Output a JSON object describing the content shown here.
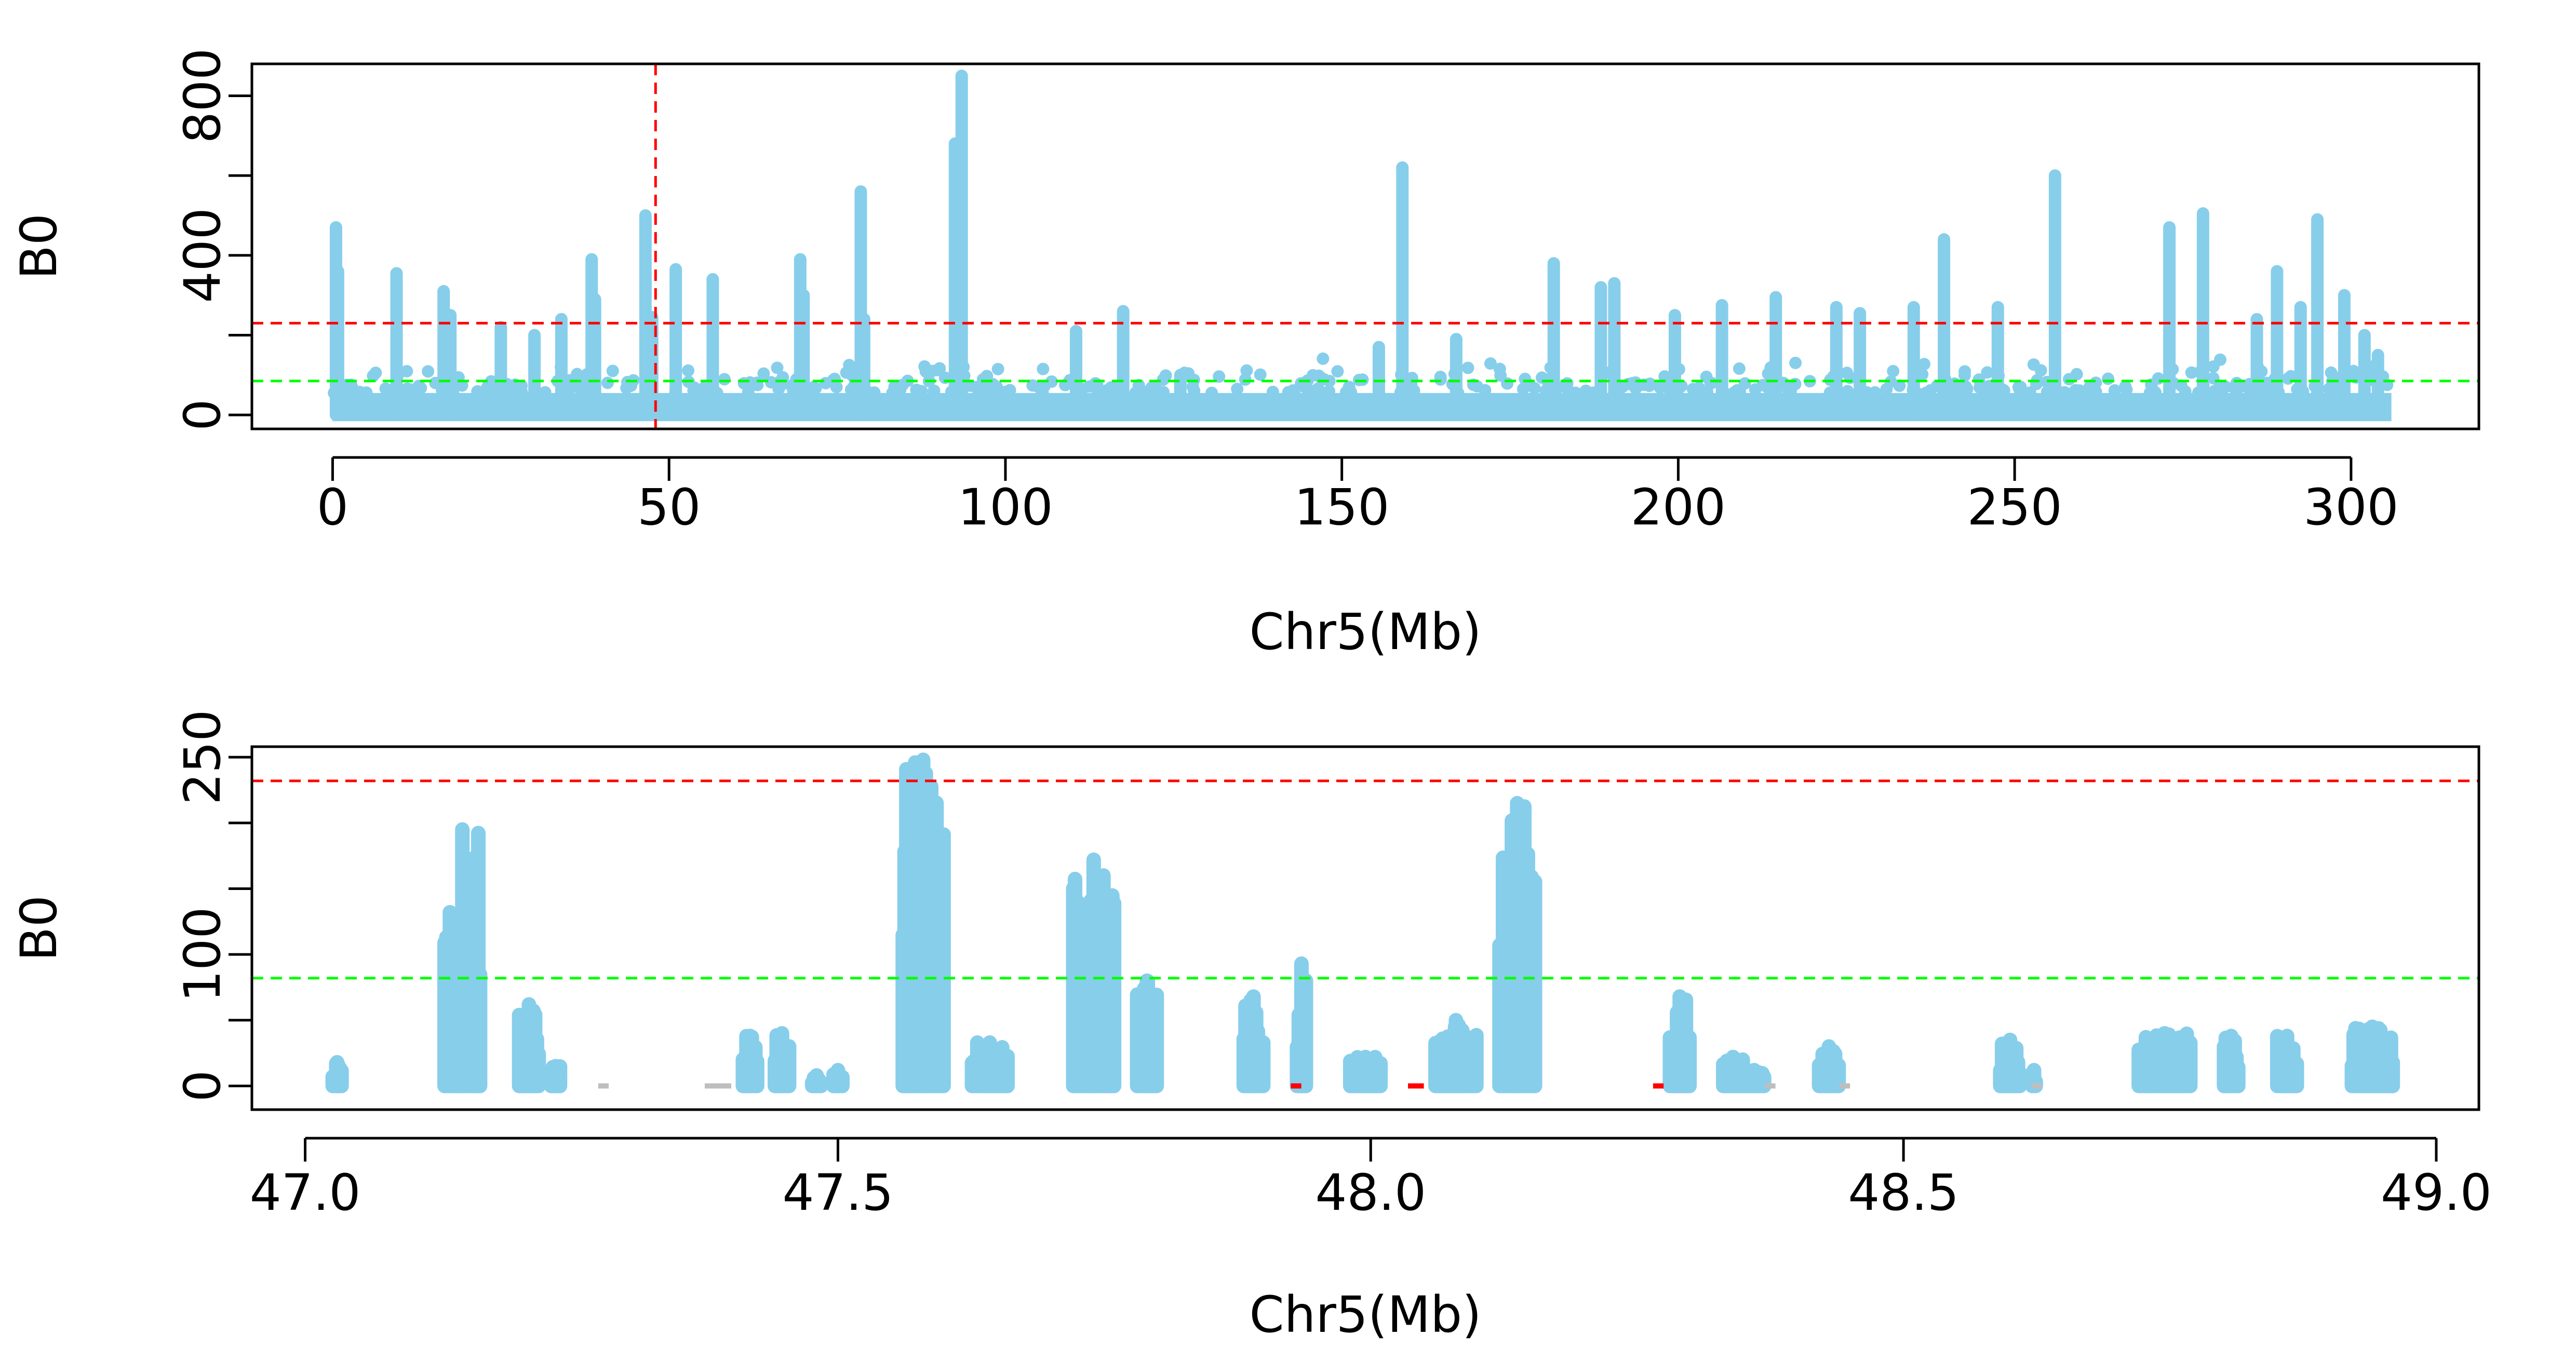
{
  "colors": {
    "points": "#87CEEB",
    "red_threshold": "#FF0000",
    "green_threshold": "#00FF00",
    "gray_points": "#BEBEBE",
    "frame": "#000000"
  },
  "chart_data": [
    {
      "type": "scatter",
      "xlabel": "Chr5(Mb)",
      "ylabel": "B0",
      "xlim": [
        -12,
        319
      ],
      "ylim": [
        -35,
        880
      ],
      "x_ticks": [
        0,
        50,
        100,
        150,
        200,
        250,
        300
      ],
      "x_tick_labels": [
        "0",
        "50",
        "100",
        "150",
        "200",
        "250",
        "300"
      ],
      "y_ticks": [
        0,
        200,
        400,
        600,
        800
      ],
      "y_tick_labels": [
        "0",
        "",
        "400",
        "",
        "800"
      ],
      "thresholds": [
        {
          "y": 230,
          "color": "red"
        },
        {
          "y": 85,
          "color": "green"
        }
      ],
      "vline": {
        "x": 48,
        "color": "red"
      },
      "baseline_range": [
        0,
        306
      ],
      "baseline_height": 55,
      "peaks": [
        {
          "x": 0.5,
          "y": 470
        },
        {
          "x": 0.8,
          "y": 360
        },
        {
          "x": 9.5,
          "y": 355
        },
        {
          "x": 16.5,
          "y": 310
        },
        {
          "x": 17.5,
          "y": 250
        },
        {
          "x": 25,
          "y": 220
        },
        {
          "x": 30,
          "y": 200
        },
        {
          "x": 34,
          "y": 240
        },
        {
          "x": 38.5,
          "y": 390
        },
        {
          "x": 39,
          "y": 290
        },
        {
          "x": 46.5,
          "y": 500
        },
        {
          "x": 47.5,
          "y": 245
        },
        {
          "x": 51,
          "y": 365
        },
        {
          "x": 56.5,
          "y": 340
        },
        {
          "x": 69.5,
          "y": 390
        },
        {
          "x": 70,
          "y": 300
        },
        {
          "x": 78.5,
          "y": 560
        },
        {
          "x": 79,
          "y": 240
        },
        {
          "x": 92.5,
          "y": 680
        },
        {
          "x": 93.5,
          "y": 850
        },
        {
          "x": 110.5,
          "y": 210
        },
        {
          "x": 117.5,
          "y": 260
        },
        {
          "x": 126,
          "y": 100
        },
        {
          "x": 155.5,
          "y": 170
        },
        {
          "x": 159,
          "y": 620
        },
        {
          "x": 167,
          "y": 190
        },
        {
          "x": 181.5,
          "y": 380
        },
        {
          "x": 188.5,
          "y": 320
        },
        {
          "x": 190.5,
          "y": 330
        },
        {
          "x": 199.5,
          "y": 250
        },
        {
          "x": 206.5,
          "y": 275
        },
        {
          "x": 214.5,
          "y": 295
        },
        {
          "x": 223.5,
          "y": 270
        },
        {
          "x": 227,
          "y": 255
        },
        {
          "x": 235,
          "y": 270
        },
        {
          "x": 239.5,
          "y": 440
        },
        {
          "x": 247.5,
          "y": 270
        },
        {
          "x": 256,
          "y": 600
        },
        {
          "x": 273,
          "y": 470
        },
        {
          "x": 278,
          "y": 505
        },
        {
          "x": 286,
          "y": 240
        },
        {
          "x": 289,
          "y": 360
        },
        {
          "x": 292.5,
          "y": 270
        },
        {
          "x": 295,
          "y": 490
        },
        {
          "x": 299,
          "y": 300
        },
        {
          "x": 302,
          "y": 200
        },
        {
          "x": 304,
          "y": 150
        }
      ]
    },
    {
      "type": "scatter",
      "xlabel": "Chr5(Mb)",
      "ylabel": "B0",
      "xlim": [
        46.95,
        49.04
      ],
      "ylim": [
        -18,
        258
      ],
      "x_ticks": [
        47.0,
        47.5,
        48.0,
        48.5,
        49.0
      ],
      "x_tick_labels": [
        "47.0",
        "47.5",
        "48.0",
        "48.5",
        "49.0"
      ],
      "y_ticks": [
        0,
        50,
        100,
        150,
        200,
        250
      ],
      "y_tick_labels": [
        "0",
        "",
        "100",
        "",
        "",
        "250"
      ],
      "thresholds": [
        {
          "y": 232,
          "color": "red"
        },
        {
          "y": 82,
          "color": "green"
        }
      ],
      "clusters": [
        {
          "x0": 47.025,
          "x1": 47.035,
          "ymax": 18
        },
        {
          "x0": 47.13,
          "x1": 47.165,
          "ymax": 195
        },
        {
          "x0": 47.2,
          "x1": 47.22,
          "ymax": 62
        },
        {
          "x0": 47.23,
          "x1": 47.24,
          "ymax": 15
        },
        {
          "x0": 47.41,
          "x1": 47.425,
          "ymax": 38
        },
        {
          "x0": 47.44,
          "x1": 47.455,
          "ymax": 40
        },
        {
          "x0": 47.475,
          "x1": 47.485,
          "ymax": 8
        },
        {
          "x0": 47.495,
          "x1": 47.505,
          "ymax": 12
        },
        {
          "x0": 47.56,
          "x1": 47.6,
          "ymax": 248
        },
        {
          "x0": 47.625,
          "x1": 47.66,
          "ymax": 33
        },
        {
          "x0": 47.72,
          "x1": 47.76,
          "ymax": 172
        },
        {
          "x0": 47.78,
          "x1": 47.8,
          "ymax": 80
        },
        {
          "x0": 47.88,
          "x1": 47.9,
          "ymax": 68
        },
        {
          "x0": 47.93,
          "x1": 47.94,
          "ymax": 93
        },
        {
          "x0": 47.98,
          "x1": 48.01,
          "ymax": 22
        },
        {
          "x0": 48.06,
          "x1": 48.1,
          "ymax": 50
        },
        {
          "x0": 48.12,
          "x1": 48.155,
          "ymax": 215
        },
        {
          "x0": 48.28,
          "x1": 48.3,
          "ymax": 68
        },
        {
          "x0": 48.33,
          "x1": 48.35,
          "ymax": 22
        },
        {
          "x0": 48.35,
          "x1": 48.37,
          "ymax": 12
        },
        {
          "x0": 48.42,
          "x1": 48.44,
          "ymax": 30
        },
        {
          "x0": 48.59,
          "x1": 48.61,
          "ymax": 35
        },
        {
          "x0": 48.62,
          "x1": 48.625,
          "ymax": 12
        },
        {
          "x0": 48.72,
          "x1": 48.77,
          "ymax": 40
        },
        {
          "x0": 48.8,
          "x1": 48.815,
          "ymax": 38
        },
        {
          "x0": 48.85,
          "x1": 48.87,
          "ymax": 38
        },
        {
          "x0": 48.92,
          "x1": 48.96,
          "ymax": 45
        }
      ],
      "small_marks": [
        {
          "x0": 47.275,
          "x1": 47.28,
          "color": "gray"
        },
        {
          "x0": 47.375,
          "x1": 47.395,
          "color": "gray"
        },
        {
          "x0": 47.925,
          "x1": 47.93,
          "color": "red"
        },
        {
          "x0": 48.035,
          "x1": 48.045,
          "color": "red"
        },
        {
          "x0": 48.265,
          "x1": 48.27,
          "color": "red"
        },
        {
          "x0": 48.37,
          "x1": 48.375,
          "color": "gray"
        },
        {
          "x0": 48.44,
          "x1": 48.445,
          "color": "gray"
        },
        {
          "x0": 48.62,
          "x1": 48.625,
          "color": "gray"
        }
      ]
    }
  ]
}
